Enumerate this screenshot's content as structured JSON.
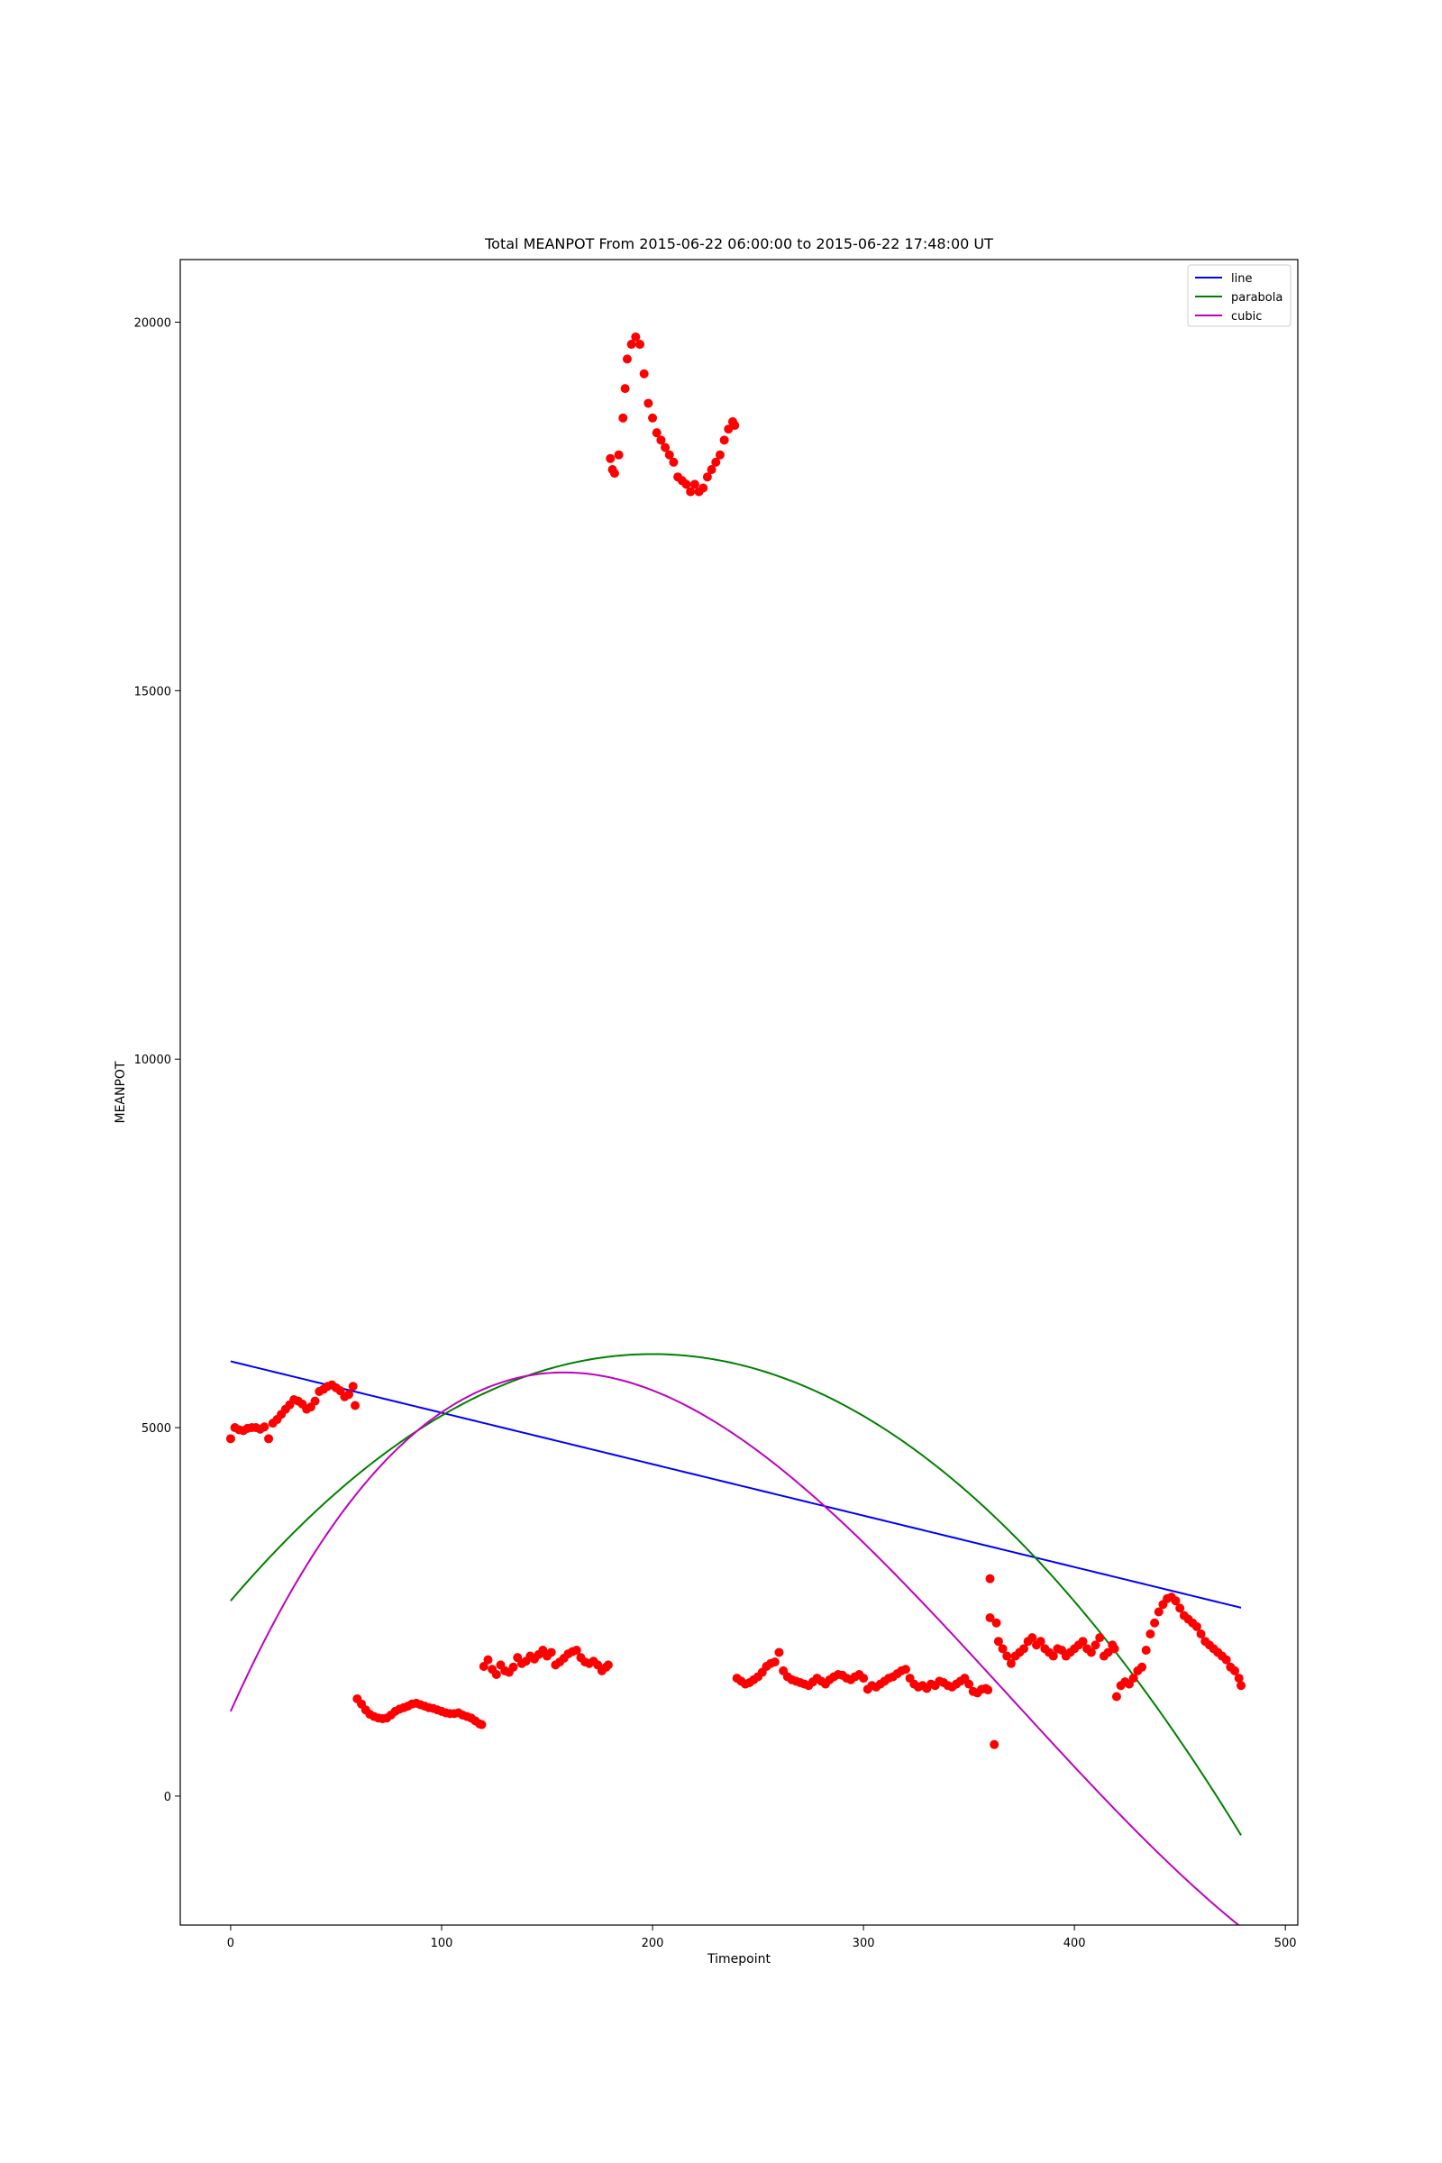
{
  "chart_data": {
    "type": "scatter",
    "title": "Total MEANPOT From 2015-06-22 06:00:00 to 2015-06-22 17:48:00 UT",
    "xlabel": "Timepoint",
    "ylabel": "MEANPOT",
    "xlim": [
      -23.9,
      505.9
    ],
    "ylim": [
      -1750,
      20850
    ],
    "xticks": [
      0,
      100,
      200,
      300,
      400,
      500
    ],
    "yticks": [
      0,
      5000,
      10000,
      15000,
      20000
    ],
    "xtick_labels": [
      "0",
      "100",
      "200",
      "300",
      "400",
      "500"
    ],
    "ytick_labels": [
      "0",
      "5000",
      "10000",
      "15000",
      "20000"
    ],
    "grid": false,
    "legend_position": "upper right",
    "legend": [
      "line",
      "parabola",
      "cubic"
    ],
    "scatter_color": "#ff0000",
    "scatter_segments": [
      {
        "x": [
          0,
          2,
          4,
          6,
          8,
          10,
          12,
          14,
          16,
          18,
          20,
          22,
          24,
          26,
          28,
          30,
          32,
          34,
          36,
          38,
          40,
          42,
          44,
          46,
          48,
          50,
          52,
          54,
          56,
          58,
          59
        ],
        "y": [
          4850,
          5000,
          4970,
          4960,
          4990,
          5000,
          5000,
          4980,
          5010,
          4850,
          5060,
          5110,
          5180,
          5250,
          5310,
          5380,
          5360,
          5320,
          5250,
          5280,
          5360,
          5490,
          5520,
          5560,
          5580,
          5540,
          5500,
          5420,
          5450,
          5560,
          5300
        ]
      },
      {
        "x": [
          60,
          62,
          64,
          66,
          68,
          70,
          72,
          74,
          76,
          78,
          80,
          82,
          84,
          86,
          88,
          90,
          92,
          94,
          96,
          98,
          100,
          102,
          104,
          106,
          108,
          110,
          112,
          114,
          116,
          118,
          119
        ],
        "y": [
          1320,
          1250,
          1170,
          1110,
          1080,
          1060,
          1050,
          1060,
          1100,
          1150,
          1180,
          1200,
          1220,
          1250,
          1260,
          1240,
          1220,
          1200,
          1190,
          1170,
          1150,
          1130,
          1120,
          1120,
          1130,
          1100,
          1080,
          1060,
          1020,
          980,
          970
        ]
      },
      {
        "x": [
          120,
          122,
          124,
          126,
          128,
          130,
          132,
          134,
          136,
          138,
          140,
          142,
          144,
          146,
          148,
          150,
          152,
          154,
          156,
          158,
          160,
          162,
          164,
          166,
          168,
          170,
          172,
          174,
          176,
          178,
          179
        ],
        "y": [
          1760,
          1850,
          1720,
          1650,
          1780,
          1700,
          1680,
          1750,
          1880,
          1800,
          1830,
          1900,
          1860,
          1920,
          1980,
          1900,
          1950,
          1780,
          1820,
          1870,
          1930,
          1960,
          1980,
          1880,
          1820,
          1800,
          1830,
          1780,
          1700,
          1750,
          1780
        ]
      },
      {
        "x": [
          180,
          181,
          182,
          184,
          186,
          187,
          188,
          190,
          192,
          194,
          196,
          198,
          200,
          202,
          204,
          206,
          208,
          210,
          212,
          214,
          216,
          218,
          220,
          222,
          224,
          226,
          228,
          230,
          232,
          234,
          236,
          238,
          239
        ],
        "y": [
          18150,
          18000,
          17950,
          18200,
          18700,
          19100,
          19500,
          19700,
          19800,
          19700,
          19300,
          18900,
          18700,
          18500,
          18400,
          18300,
          18200,
          18100,
          17900,
          17850,
          17800,
          17700,
          17800,
          17700,
          17750,
          17900,
          18000,
          18100,
          18200,
          18400,
          18550,
          18650,
          18600
        ]
      },
      {
        "x": [
          240,
          242,
          244,
          246,
          248,
          250,
          252,
          254,
          256,
          258,
          260,
          262,
          264,
          266,
          268,
          270,
          272,
          274,
          276,
          278,
          280,
          282,
          284,
          286,
          288,
          290,
          292,
          294,
          296,
          298,
          300,
          302,
          304,
          306,
          308,
          310,
          312,
          314,
          316,
          318,
          320,
          322,
          324,
          326,
          328,
          330,
          332,
          334,
          336,
          338,
          340,
          342,
          344,
          346,
          348,
          350,
          352,
          354,
          356,
          358,
          359
        ],
        "y": [
          1600,
          1560,
          1520,
          1540,
          1580,
          1620,
          1680,
          1760,
          1800,
          1820,
          1950,
          1700,
          1620,
          1580,
          1560,
          1540,
          1520,
          1500,
          1550,
          1600,
          1560,
          1520,
          1580,
          1620,
          1650,
          1640,
          1600,
          1580,
          1620,
          1650,
          1600,
          1450,
          1500,
          1480,
          1520,
          1560,
          1600,
          1620,
          1660,
          1700,
          1720,
          1600,
          1520,
          1480,
          1500,
          1460,
          1520,
          1500,
          1560,
          1540,
          1500,
          1480,
          1520,
          1560,
          1600,
          1520,
          1420,
          1400,
          1450,
          1460,
          1440
        ]
      },
      {
        "x": [
          360,
          362,
          364,
          366,
          368,
          370,
          372,
          374,
          376,
          378,
          380,
          382,
          384,
          386,
          388,
          390,
          392,
          394,
          396,
          398,
          400,
          402,
          404,
          406,
          408,
          410,
          412,
          414,
          416,
          418,
          419
        ],
        "y": [
          2420,
          700,
          2100,
          2000,
          1900,
          1800,
          1900,
          1950,
          2000,
          2100,
          2150,
          2050,
          2100,
          2000,
          1950,
          1900,
          2000,
          1980,
          1900,
          1950,
          2000,
          2050,
          2100,
          2000,
          1950,
          2050,
          2150,
          1900,
          1950,
          2050,
          2000
        ]
      },
      {
        "x": [
          420,
          422,
          424,
          426,
          428,
          430,
          432,
          434,
          436,
          438,
          440,
          442,
          444,
          446,
          448,
          450,
          452,
          454,
          456,
          458,
          460,
          462,
          464,
          466,
          468,
          470,
          472,
          474,
          476,
          478,
          479
        ],
        "y": [
          1350,
          1500,
          1550,
          1520,
          1600,
          1700,
          1750,
          1980,
          2200,
          2350,
          2500,
          2600,
          2680,
          2700,
          2650,
          2550,
          2450,
          2400,
          2350,
          2300,
          2200,
          2100,
          2050,
          2000,
          1950,
          1900,
          1850,
          1750,
          1700,
          1600,
          1500
        ]
      }
    ],
    "scatter_extra": [
      {
        "x": 360,
        "y": 2950
      },
      {
        "x": 363,
        "y": 2350
      }
    ],
    "series": [
      {
        "name": "line",
        "color": "#0000ff",
        "coefficients": [
          5900,
          -6.98
        ]
      },
      {
        "name": "parabola",
        "color": "#008000",
        "coefficients": [
          2650,
          33.5,
          -0.0838
        ]
      },
      {
        "name": "cubic",
        "color": "#bf00bf",
        "coefficients": [
          1150,
          64.0,
          -0.2575,
          0.000232
        ]
      }
    ],
    "fit_x_range": [
      0,
      479
    ]
  }
}
